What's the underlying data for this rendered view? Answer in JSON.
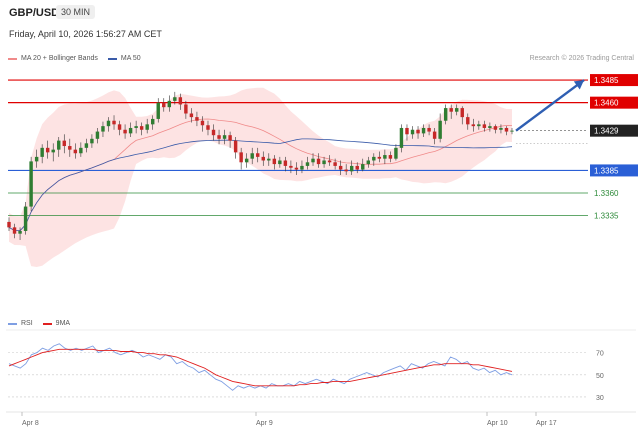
{
  "header": {
    "symbol": "GBP/USD",
    "timeframe": "30 MIN",
    "datetime": "Friday, April 10, 2026 1:56:27 AM CET"
  },
  "legend": {
    "bb_label": "MA 20 + Bollinger Bands",
    "ma50_label": "MA 50",
    "bb_color": "#f08a8a",
    "ma50_color": "#3a5ba9"
  },
  "watermark": "Research © 2026 Trading Central",
  "rsi_legend": {
    "rsi_label": "RSI",
    "ma_label": "9MA",
    "rsi_color": "#7f9fe3",
    "ma_color": "#e02020"
  },
  "chart_data": [
    {
      "type": "candlestick",
      "title": "GBP/USD",
      "timeframe": "30 MIN",
      "x_tick_labels": [
        "Apr 8",
        "Apr 9",
        "Apr 10",
        "Apr 17"
      ],
      "ylim": [
        1.3225,
        1.3505
      ],
      "current_price": 1.3429,
      "levels": [
        {
          "value": 1.3485,
          "label": "1.3485",
          "kind": "resistance",
          "color": "#e00000"
        },
        {
          "value": 1.346,
          "label": "1.3460",
          "kind": "resistance",
          "color": "#e00000"
        },
        {
          "value": 1.3385,
          "label": "1.3385",
          "kind": "support",
          "color": "#2a5fd6"
        },
        {
          "value": 1.336,
          "label": "1.3360",
          "kind": "target",
          "color": "#2e8b3a"
        },
        {
          "value": 1.3335,
          "label": "1.3335",
          "kind": "target",
          "color": "#2e8b3a"
        }
      ],
      "bullish_arrow": {
        "from": 1.3429,
        "to": 1.3485
      },
      "candles": [
        [
          1.3328,
          1.3322,
          1.3333,
          1.3318
        ],
        [
          1.3322,
          1.3315,
          1.3326,
          1.331
        ],
        [
          1.3315,
          1.3318,
          1.3322,
          1.3308
        ],
        [
          1.3318,
          1.3345,
          1.335,
          1.3314
        ],
        [
          1.3345,
          1.3395,
          1.34,
          1.334
        ],
        [
          1.3395,
          1.34,
          1.3408,
          1.3388
        ],
        [
          1.34,
          1.341,
          1.3414,
          1.3393
        ],
        [
          1.341,
          1.3405,
          1.3418,
          1.3398
        ],
        [
          1.3405,
          1.3408,
          1.3415,
          1.3395
        ],
        [
          1.3408,
          1.3418,
          1.3422,
          1.34
        ],
        [
          1.3418,
          1.3412,
          1.3425,
          1.3404
        ],
        [
          1.3412,
          1.3408,
          1.342,
          1.34
        ],
        [
          1.3408,
          1.3404,
          1.3415,
          1.3398
        ],
        [
          1.3404,
          1.341,
          1.3416,
          1.34
        ],
        [
          1.341,
          1.3415,
          1.342,
          1.3405
        ],
        [
          1.3415,
          1.342,
          1.3425,
          1.341
        ],
        [
          1.342,
          1.3428,
          1.3432,
          1.3415
        ],
        [
          1.3428,
          1.3434,
          1.3439,
          1.3422
        ],
        [
          1.3434,
          1.344,
          1.3444,
          1.3428
        ],
        [
          1.344,
          1.3436,
          1.3446,
          1.343
        ],
        [
          1.3436,
          1.343,
          1.344,
          1.3424
        ],
        [
          1.343,
          1.3426,
          1.3436,
          1.342
        ],
        [
          1.3426,
          1.3432,
          1.3438,
          1.3422
        ],
        [
          1.3432,
          1.3434,
          1.344,
          1.3426
        ],
        [
          1.3434,
          1.343,
          1.3438,
          1.3424
        ],
        [
          1.343,
          1.3436,
          1.3442,
          1.3426
        ],
        [
          1.3436,
          1.3442,
          1.3446,
          1.343
        ],
        [
          1.3442,
          1.346,
          1.3465,
          1.3438
        ],
        [
          1.346,
          1.3455,
          1.3465,
          1.345
        ],
        [
          1.3455,
          1.3462,
          1.3468,
          1.345
        ],
        [
          1.3462,
          1.3466,
          1.3472,
          1.3458
        ],
        [
          1.3466,
          1.3458,
          1.347,
          1.3452
        ],
        [
          1.3458,
          1.3448,
          1.3462,
          1.3442
        ],
        [
          1.3448,
          1.3444,
          1.3454,
          1.3438
        ],
        [
          1.3444,
          1.344,
          1.345,
          1.3434
        ],
        [
          1.344,
          1.3435,
          1.3445,
          1.3428
        ],
        [
          1.3435,
          1.343,
          1.344,
          1.3424
        ],
        [
          1.343,
          1.3424,
          1.3436,
          1.3418
        ],
        [
          1.3424,
          1.342,
          1.343,
          1.3414
        ],
        [
          1.342,
          1.3424,
          1.343,
          1.3414
        ],
        [
          1.3424,
          1.3418,
          1.3428,
          1.341
        ],
        [
          1.3418,
          1.3405,
          1.3422,
          1.3398
        ],
        [
          1.3405,
          1.3394,
          1.341,
          1.3386
        ],
        [
          1.3394,
          1.3398,
          1.3404,
          1.3388
        ],
        [
          1.3398,
          1.3404,
          1.341,
          1.3392
        ],
        [
          1.3404,
          1.34,
          1.341,
          1.3394
        ],
        [
          1.34,
          1.3396,
          1.3406,
          1.339
        ],
        [
          1.3396,
          1.3398,
          1.3404,
          1.339
        ],
        [
          1.3398,
          1.3392,
          1.3402,
          1.3386
        ],
        [
          1.3392,
          1.3396,
          1.34,
          1.3388
        ],
        [
          1.3396,
          1.339,
          1.34,
          1.3384
        ],
        [
          1.339,
          1.3388,
          1.3396,
          1.3382
        ],
        [
          1.3388,
          1.3386,
          1.3394,
          1.338
        ],
        [
          1.3386,
          1.339,
          1.3396,
          1.3382
        ],
        [
          1.339,
          1.3394,
          1.34,
          1.3386
        ],
        [
          1.3394,
          1.3398,
          1.3404,
          1.339
        ],
        [
          1.3398,
          1.3392,
          1.3404,
          1.3388
        ],
        [
          1.3392,
          1.3396,
          1.34,
          1.3388
        ],
        [
          1.3396,
          1.3394,
          1.3402,
          1.339
        ],
        [
          1.3394,
          1.339,
          1.3398,
          1.3386
        ],
        [
          1.339,
          1.3386,
          1.3396,
          1.338
        ],
        [
          1.3386,
          1.3384,
          1.3392,
          1.338
        ],
        [
          1.3384,
          1.339,
          1.3396,
          1.338
        ],
        [
          1.339,
          1.3386,
          1.3394,
          1.3382
        ],
        [
          1.3386,
          1.3392,
          1.3398,
          1.3384
        ],
        [
          1.3392,
          1.3396,
          1.34,
          1.3388
        ],
        [
          1.3396,
          1.34,
          1.3404,
          1.339
        ],
        [
          1.34,
          1.3398,
          1.3406,
          1.3394
        ],
        [
          1.3398,
          1.3402,
          1.3408,
          1.3392
        ],
        [
          1.3402,
          1.3398,
          1.3406,
          1.3394
        ],
        [
          1.3398,
          1.341,
          1.3414,
          1.3396
        ],
        [
          1.341,
          1.3432,
          1.3436,
          1.3405
        ],
        [
          1.3432,
          1.3425,
          1.3436,
          1.3418
        ],
        [
          1.3425,
          1.343,
          1.3434,
          1.342
        ],
        [
          1.343,
          1.3426,
          1.3434,
          1.342
        ],
        [
          1.3426,
          1.3432,
          1.3436,
          1.3422
        ],
        [
          1.3432,
          1.3428,
          1.3436,
          1.3424
        ],
        [
          1.3428,
          1.342,
          1.3432,
          1.3414
        ],
        [
          1.342,
          1.344,
          1.3448,
          1.3416
        ],
        [
          1.344,
          1.3454,
          1.3458,
          1.3436
        ],
        [
          1.3454,
          1.345,
          1.3458,
          1.3442
        ],
        [
          1.345,
          1.3454,
          1.3458,
          1.3446
        ],
        [
          1.3454,
          1.3444,
          1.3456,
          1.3436
        ],
        [
          1.3444,
          1.3436,
          1.3448,
          1.343
        ],
        [
          1.3436,
          1.3434,
          1.3442,
          1.3428
        ],
        [
          1.3434,
          1.3436,
          1.344,
          1.343
        ],
        [
          1.3436,
          1.3432,
          1.344,
          1.3428
        ],
        [
          1.3432,
          1.3434,
          1.3438,
          1.3428
        ],
        [
          1.3434,
          1.343,
          1.3436,
          1.3426
        ],
        [
          1.343,
          1.3432,
          1.3436,
          1.3426
        ],
        [
          1.3432,
          1.3428,
          1.3434,
          1.3424
        ],
        [
          1.3428,
          1.3429,
          1.3432,
          1.3425
        ]
      ]
    },
    {
      "type": "line",
      "series": [
        {
          "name": "RSI",
          "values": [
            60,
            58,
            56,
            60,
            68,
            70,
            74,
            72,
            76,
            78,
            74,
            72,
            74,
            72,
            74,
            76,
            70,
            72,
            74,
            70,
            68,
            70,
            72,
            70,
            66,
            68,
            66,
            64,
            68,
            66,
            60,
            62,
            58,
            56,
            52,
            54,
            50,
            46,
            44,
            40,
            36,
            40,
            38,
            40,
            38,
            40,
            38,
            42,
            40,
            40,
            42,
            40,
            44,
            42,
            44,
            46,
            44,
            42,
            46,
            44,
            42,
            46,
            48,
            50,
            52,
            50,
            48,
            52,
            54,
            56,
            58,
            54,
            60,
            58,
            56,
            60,
            62,
            60,
            58,
            66,
            64,
            60,
            62,
            56,
            54,
            56,
            52,
            54,
            50,
            52,
            50
          ]
        },
        {
          "name": "9MA",
          "values": [
            58,
            60,
            62,
            64,
            66,
            68,
            70,
            71,
            72,
            73,
            73,
            73,
            73,
            73,
            73,
            73,
            72,
            72,
            72,
            72,
            71,
            71,
            71,
            70,
            70,
            69,
            69,
            68,
            68,
            67,
            66,
            64,
            62,
            60,
            58,
            56,
            53,
            50,
            48,
            46,
            44,
            43,
            42,
            41,
            40,
            40,
            40,
            40,
            40,
            40,
            40,
            40,
            41,
            41,
            42,
            42,
            43,
            43,
            44,
            44,
            44,
            44,
            45,
            46,
            47,
            48,
            49,
            50,
            51,
            52,
            53,
            54,
            55,
            56,
            57,
            58,
            59,
            59,
            60,
            60,
            60,
            60,
            60,
            59,
            59,
            58,
            57,
            56,
            55,
            54,
            53
          ]
        }
      ],
      "ylim": [
        20,
        85
      ],
      "y_ticks": [
        30,
        50,
        70
      ],
      "reference_lines": [
        30,
        50,
        70
      ]
    }
  ]
}
